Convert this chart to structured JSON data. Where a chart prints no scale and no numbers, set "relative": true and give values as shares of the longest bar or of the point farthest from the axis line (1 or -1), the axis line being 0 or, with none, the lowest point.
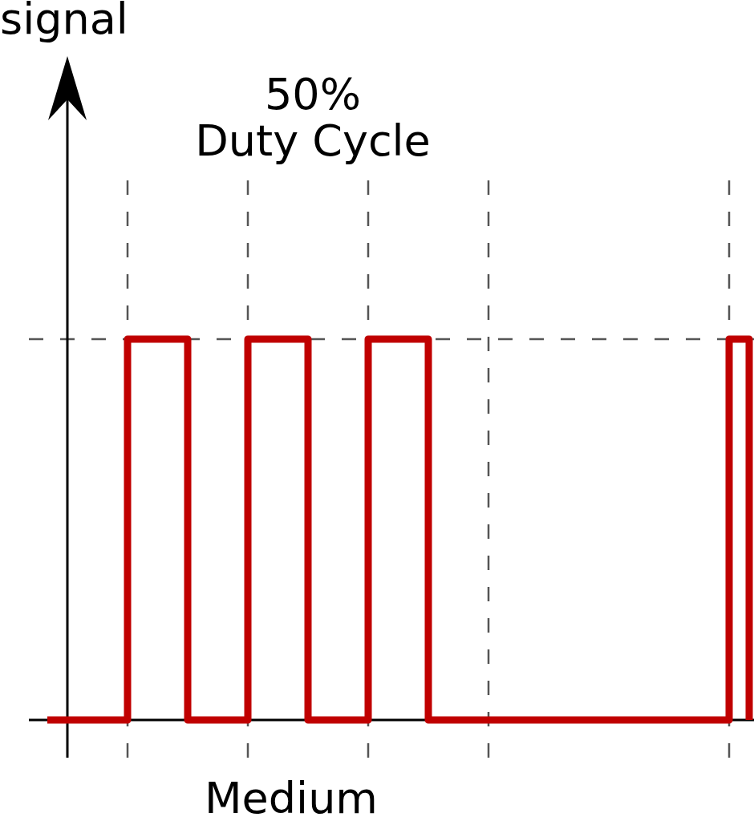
{
  "chart_data": {
    "type": "step",
    "title": "50%\nDuty Cycle",
    "xlabel": "Medium",
    "annotations": [
      "signal"
    ],
    "categories": [
      null,
      null,
      null,
      null,
      null,
      null,
      null,
      null,
      null,
      null,
      null,
      null,
      null,
      null,
      null,
      null,
      null,
      null,
      null,
      null,
      null,
      null,
      null,
      null,
      null,
      null,
      null,
      null,
      null,
      null,
      null,
      null,
      null,
      null,
      null,
      null
    ],
    "values": [
      0,
      0,
      0,
      0,
      1,
      1,
      1,
      0,
      0,
      0,
      1,
      1,
      1,
      0,
      0,
      0,
      1,
      1,
      1,
      0,
      0,
      0,
      0,
      0,
      0,
      0,
      0,
      0,
      0,
      0,
      0,
      0,
      0,
      0,
      1,
      0
    ],
    "color": "#c00000",
    "relative": true,
    "grid": true,
    "marker": "none",
    "line_style": "solid",
    "legend": false
  }
}
